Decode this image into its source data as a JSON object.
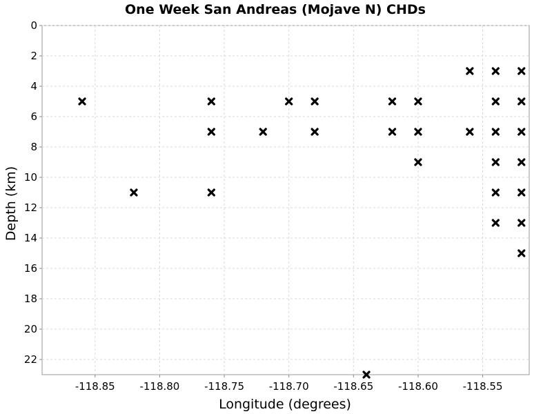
{
  "chart_data": {
    "type": "scatter",
    "title": "One Week San Andreas (Mojave N) CHDs",
    "xlabel": "Longitude (degrees)",
    "ylabel": "Depth (km)",
    "xlim": [
      -118.891,
      -118.514
    ],
    "ylim": [
      23,
      0
    ],
    "y_inverted": true,
    "grid": true,
    "marker": "x",
    "marker_color": "#000000",
    "x_ticks": [
      -118.85,
      -118.8,
      -118.75,
      -118.7,
      -118.65,
      -118.6,
      -118.55
    ],
    "x_tick_labels": [
      "-118.85",
      "-118.80",
      "-118.75",
      "-118.70",
      "-118.65",
      "-118.60",
      "-118.55"
    ],
    "y_ticks": [
      0,
      2,
      4,
      6,
      8,
      10,
      12,
      14,
      16,
      18,
      20,
      22
    ],
    "y_tick_labels": [
      "0",
      "2",
      "4",
      "6",
      "8",
      "10",
      "12",
      "14",
      "16",
      "18",
      "20",
      "22"
    ],
    "points": [
      {
        "x": -118.86,
        "y": 5
      },
      {
        "x": -118.82,
        "y": 11
      },
      {
        "x": -118.76,
        "y": 5
      },
      {
        "x": -118.76,
        "y": 7
      },
      {
        "x": -118.76,
        "y": 11
      },
      {
        "x": -118.72,
        "y": 7
      },
      {
        "x": -118.7,
        "y": 5
      },
      {
        "x": -118.68,
        "y": 5
      },
      {
        "x": -118.68,
        "y": 7
      },
      {
        "x": -118.64,
        "y": 23
      },
      {
        "x": -118.62,
        "y": 5
      },
      {
        "x": -118.62,
        "y": 7
      },
      {
        "x": -118.6,
        "y": 5
      },
      {
        "x": -118.6,
        "y": 7
      },
      {
        "x": -118.6,
        "y": 9
      },
      {
        "x": -118.56,
        "y": 3
      },
      {
        "x": -118.56,
        "y": 7
      },
      {
        "x": -118.54,
        "y": 3
      },
      {
        "x": -118.54,
        "y": 5
      },
      {
        "x": -118.54,
        "y": 7
      },
      {
        "x": -118.54,
        "y": 9
      },
      {
        "x": -118.54,
        "y": 11
      },
      {
        "x": -118.54,
        "y": 13
      },
      {
        "x": -118.52,
        "y": 3
      },
      {
        "x": -118.52,
        "y": 5
      },
      {
        "x": -118.52,
        "y": 7
      },
      {
        "x": -118.52,
        "y": 9
      },
      {
        "x": -118.52,
        "y": 11
      },
      {
        "x": -118.52,
        "y": 13
      },
      {
        "x": -118.52,
        "y": 15
      }
    ]
  }
}
